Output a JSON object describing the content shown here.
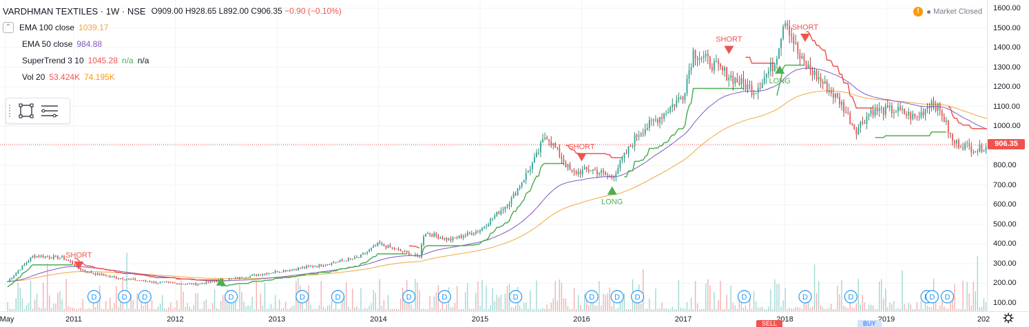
{
  "header": {
    "symbol_title": "VARDHMAN TEXTILES · 1W · NSE",
    "ohlc": {
      "o": "O909.00",
      "h": "H928.65",
      "l": "L892.00",
      "c": "C906.35",
      "change": "−0.90 (−0.10%)"
    }
  },
  "indicators": [
    {
      "name": "EMA 100 close",
      "value": "1039.17",
      "value2": "",
      "value3": "",
      "color": "#f0a73a"
    },
    {
      "name": "EMA 50 close",
      "value": "984.88",
      "value2": "",
      "value3": "",
      "color": "#7e57c2"
    },
    {
      "name": "SuperTrend 3 10",
      "value": "1045.28",
      "value2": "n/a",
      "value3": "n/a",
      "color": "#ef5350"
    },
    {
      "name": "Vol 20",
      "value": "53.424K",
      "value2": "74.195K",
      "value3": "",
      "color": "#ef5350"
    }
  ],
  "market_status": "Market Closed",
  "price_label": "906.35",
  "order_tags": {
    "sell": "SELL",
    "buy": "BUY"
  },
  "icons": [
    "collapse-icon",
    "rectangle-tool-icon",
    "menu-lines-icon",
    "warning-icon",
    "dividend-icon",
    "long-arrow-icon",
    "short-arrow-icon"
  ],
  "colors": {
    "up": "#26a69a",
    "down": "#ef5350",
    "supertrend_up": "#4caf50",
    "supertrend_down": "#ef5350",
    "ema50": "#7e57c2",
    "ema100": "#f0a73a"
  },
  "chart_data": {
    "type": "candlestick",
    "y_ticks": [
      "1600.00",
      "1500.00",
      "1400.00",
      "1300.00",
      "1200.00",
      "1100.00",
      "1000.00",
      "900.00",
      "800.00",
      "700.00",
      "600.00",
      "500.00",
      "400.00",
      "300.00",
      "200.00",
      "100.00"
    ],
    "x_ticks": [
      "May",
      "2011",
      "2012",
      "2013",
      "2014",
      "2015",
      "2016",
      "2017",
      "2018",
      "2019",
      "202"
    ],
    "ylim": [
      100,
      1600
    ],
    "last_price": 906.35,
    "price_path": [
      [
        2010.35,
        210
      ],
      [
        2010.6,
        340
      ],
      [
        2010.9,
        330
      ],
      [
        2011.1,
        260
      ],
      [
        2011.4,
        230
      ],
      [
        2011.8,
        205
      ],
      [
        2012.2,
        195
      ],
      [
        2012.6,
        225
      ],
      [
        2013.0,
        260
      ],
      [
        2013.4,
        290
      ],
      [
        2013.8,
        330
      ],
      [
        2014.0,
        400
      ],
      [
        2014.3,
        350
      ],
      [
        2014.4,
        330
      ],
      [
        2014.45,
        460
      ],
      [
        2014.7,
        420
      ],
      [
        2015.0,
        470
      ],
      [
        2015.3,
        620
      ],
      [
        2015.55,
        840
      ],
      [
        2015.65,
        960
      ],
      [
        2015.9,
        760
      ],
      [
        2016.1,
        780
      ],
      [
        2016.3,
        740
      ],
      [
        2016.55,
        960
      ],
      [
        2016.8,
        1060
      ],
      [
        2017.0,
        1160
      ],
      [
        2017.1,
        1380
      ],
      [
        2017.3,
        1310
      ],
      [
        2017.5,
        1240
      ],
      [
        2017.7,
        1180
      ],
      [
        2017.9,
        1320
      ],
      [
        2018.0,
        1560
      ],
      [
        2018.15,
        1340
      ],
      [
        2018.3,
        1260
      ],
      [
        2018.55,
        1120
      ],
      [
        2018.7,
        980
      ],
      [
        2018.85,
        1080
      ],
      [
        2019.1,
        1080
      ],
      [
        2019.3,
        1040
      ],
      [
        2019.45,
        1130
      ],
      [
        2019.55,
        1060
      ],
      [
        2019.65,
        920
      ],
      [
        2019.9,
        880
      ],
      [
        2020.0,
        910
      ]
    ],
    "supertrend": {
      "short_signals": [
        {
          "x": 2011.05,
          "label": "SHORT"
        },
        {
          "x": 2016.0,
          "label": "SHORT"
        },
        {
          "x": 2017.45,
          "label": "SHORT"
        },
        {
          "x": 2018.2,
          "label": "SHORT"
        }
      ],
      "long_signals": [
        {
          "x": 2012.45,
          "label": ""
        },
        {
          "x": 2016.3,
          "label": "LONG"
        },
        {
          "x": 2017.95,
          "label": "LONG"
        }
      ]
    },
    "dividend_markers": [
      2010.2,
      2011.2,
      2011.5,
      2011.7,
      2012.55,
      2013.25,
      2013.6,
      2014.3,
      2014.65,
      2015.35,
      2016.1,
      2016.35,
      2016.55,
      2017.6,
      2018.2,
      2018.65,
      2019.4,
      2019.45,
      2019.6,
      2020.05,
      2020.3,
      2020.5
    ]
  }
}
